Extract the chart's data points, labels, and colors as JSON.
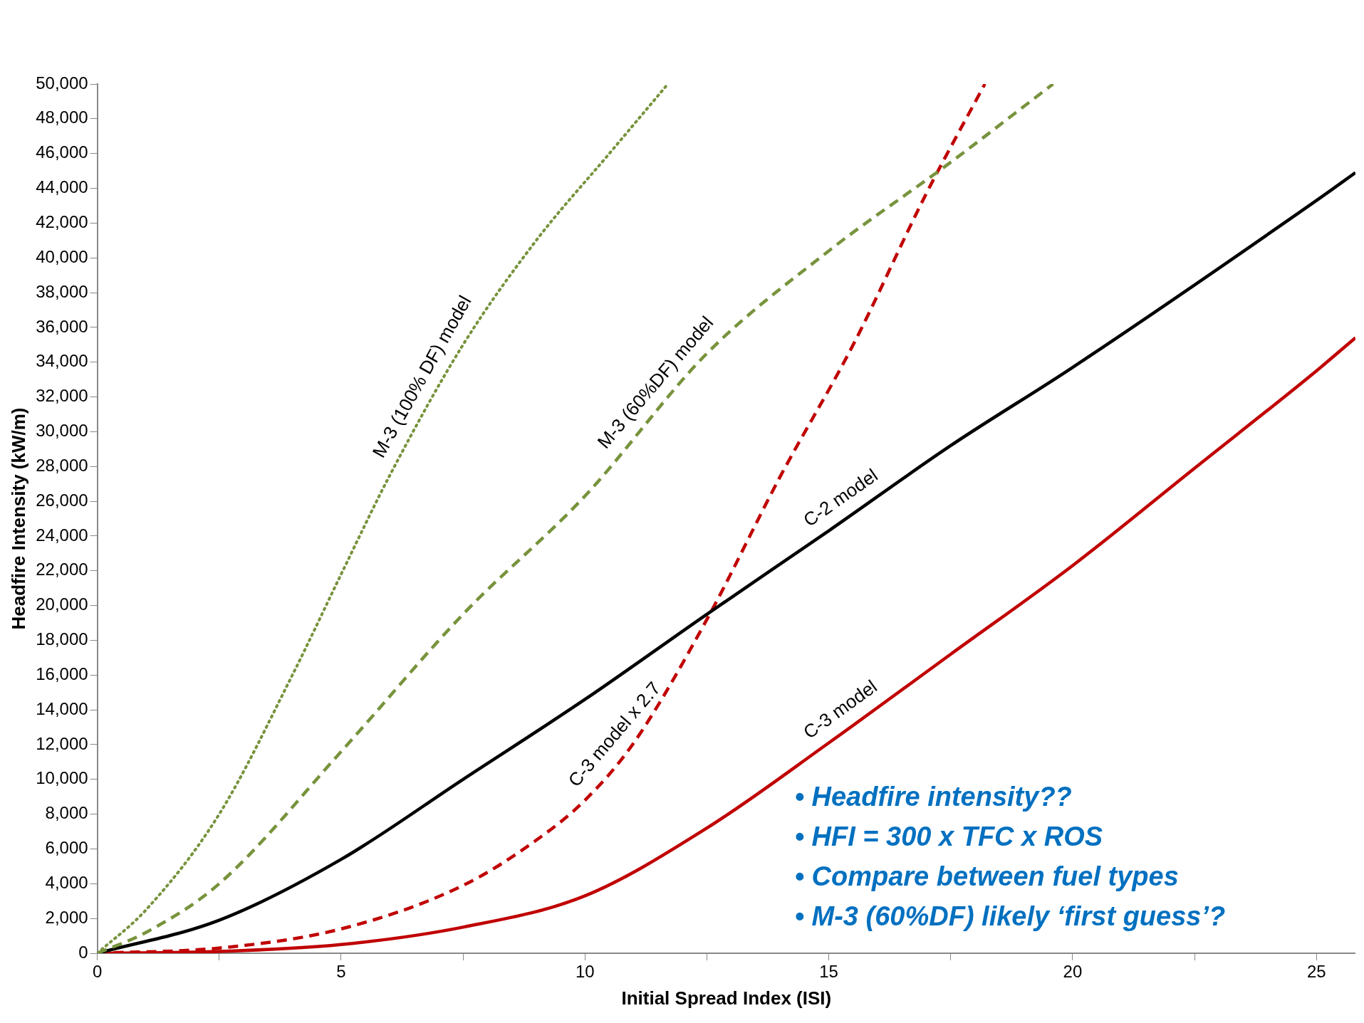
{
  "chart_data": {
    "type": "line",
    "xlabel": "Initial Spread Index (ISI)",
    "ylabel": "Headfire Intensity (kW/m)",
    "xlim": [
      0,
      25.8
    ],
    "xticks": [
      0,
      {
        "value": 2.5,
        "label": null
      },
      5,
      {
        "value": 7.5,
        "label": null
      },
      10,
      {
        "value": 12.5,
        "label": null
      },
      15,
      {
        "value": 17.5,
        "label": null
      },
      20,
      {
        "value": 22.5,
        "label": null
      },
      25
    ],
    "ylim": [
      0,
      50000
    ],
    "yticks": [
      {
        "value": 0,
        "label": "0"
      },
      {
        "value": 2000,
        "label": "2,000"
      },
      {
        "value": 4000,
        "label": "4,000"
      },
      {
        "value": 6000,
        "label": "6,000"
      },
      {
        "value": 8000,
        "label": "8,000"
      },
      {
        "value": 10000,
        "label": "10,000"
      },
      {
        "value": 12000,
        "label": "12,000"
      },
      {
        "value": 14000,
        "label": "14,000"
      },
      {
        "value": 16000,
        "label": "16,000"
      },
      {
        "value": 18000,
        "label": "18,000"
      },
      {
        "value": 20000,
        "label": "20,000"
      },
      {
        "value": 22000,
        "label": "22,000"
      },
      {
        "value": 24000,
        "label": "24,000"
      },
      {
        "value": 26000,
        "label": "26,000"
      },
      {
        "value": 28000,
        "label": "28,000"
      },
      {
        "value": 30000,
        "label": "30,000"
      },
      {
        "value": 32000,
        "label": "32,000"
      },
      {
        "value": 34000,
        "label": "34,000"
      },
      {
        "value": 36000,
        "label": "36,000"
      },
      {
        "value": 38000,
        "label": "38,000"
      },
      {
        "value": 40000,
        "label": "40,000"
      },
      {
        "value": 42000,
        "label": "42,000"
      },
      {
        "value": 44000,
        "label": "44,000"
      },
      {
        "value": 46000,
        "label": "46,000"
      },
      {
        "value": 48000,
        "label": "48,000"
      },
      {
        "value": 50000,
        "label": "50,000"
      }
    ],
    "grid": false,
    "legend": false,
    "marker": "none",
    "series": [
      {
        "name": "M-3 (100% DF) model",
        "color": "#77933c",
        "line_style": "dotted",
        "x": [
          0,
          1,
          2.5,
          4,
          5,
          6,
          7.5,
          9,
          10.5,
          11.7
        ],
        "values": [
          0,
          2500,
          8000,
          16000,
          21800,
          27500,
          35000,
          41000,
          46000,
          50000
        ]
      },
      {
        "name": "M-3 (60%DF) model",
        "color": "#77933c",
        "line_style": "dashed",
        "x": [
          0,
          1,
          2.5,
          5,
          7.5,
          10,
          12.5,
          15,
          17.5,
          19.6
        ],
        "values": [
          0,
          1200,
          4000,
          11600,
          19500,
          26300,
          34500,
          40400,
          45500,
          50000
        ]
      },
      {
        "name": "C-2 model",
        "color": "#000000",
        "line_style": "solid",
        "x": [
          0,
          2.5,
          5,
          7.5,
          10,
          12.5,
          15,
          17.5,
          20,
          25,
          25.8
        ],
        "values": [
          0,
          1900,
          5400,
          10000,
          14600,
          19500,
          24300,
          29200,
          33700,
          43300,
          44900
        ]
      },
      {
        "name": "C-3 model x 2.7",
        "color": "#c00000",
        "line_style": "dashed",
        "x": [
          0,
          2.5,
          5,
          7.5,
          9,
          10,
          11,
          12.5,
          14,
          15.5,
          17,
          18.2
        ],
        "values": [
          0,
          300,
          1400,
          3900,
          6500,
          8800,
          12100,
          19200,
          27400,
          35000,
          43700,
          50000
        ]
      },
      {
        "name": "C-3 model",
        "color": "#c00000",
        "line_style": "solid",
        "x": [
          0,
          2.5,
          5,
          7.5,
          10,
          12.5,
          15,
          17.5,
          20,
          22.5,
          25,
          25.8
        ],
        "values": [
          0,
          100,
          500,
          1500,
          3300,
          7200,
          12100,
          17200,
          22300,
          27900,
          33500,
          35400
        ]
      }
    ],
    "annotations": [
      "• Headfire intensity??",
      "• HFI = 300 x TFC x ROS",
      "• Compare between fuel types",
      "• M-3 (60%DF) likely ‘first guess’?"
    ]
  }
}
